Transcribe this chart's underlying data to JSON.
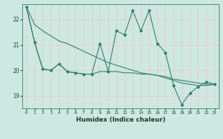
{
  "xlabel": "Humidex (Indice chaleur)",
  "bg_color": "#cce8e0",
  "line_color": "#2e7d6e",
  "grid_color": "#f0c8c8",
  "xlim": [
    -0.5,
    23.5
  ],
  "ylim": [
    18.5,
    22.6
  ],
  "yticks": [
    19,
    20,
    21,
    22
  ],
  "xticks": [
    0,
    1,
    2,
    3,
    4,
    5,
    6,
    7,
    8,
    9,
    10,
    11,
    12,
    13,
    14,
    15,
    16,
    17,
    18,
    19,
    20,
    21,
    22,
    23
  ],
  "series1": [
    22.5,
    21.8,
    21.55,
    21.35,
    21.15,
    21.05,
    20.9,
    20.75,
    20.6,
    20.45,
    20.3,
    20.2,
    20.1,
    20.0,
    19.9,
    19.85,
    19.8,
    19.7,
    19.6,
    19.5,
    19.45,
    19.4,
    19.4,
    19.45
  ],
  "series2": [
    22.5,
    21.1,
    20.05,
    20.0,
    20.25,
    19.95,
    19.9,
    19.85,
    19.85,
    21.05,
    19.95,
    21.55,
    21.4,
    22.35,
    21.55,
    22.35,
    21.05,
    20.7,
    19.4,
    18.65,
    19.1,
    19.35,
    19.55,
    19.45
  ],
  "series3": [
    22.5,
    21.1,
    20.05,
    20.0,
    20.25,
    19.95,
    19.9,
    19.85,
    19.85,
    19.95,
    19.95,
    19.95,
    19.9,
    19.9,
    19.85,
    19.85,
    19.8,
    19.75,
    19.65,
    19.6,
    19.55,
    19.5,
    19.45,
    19.45
  ]
}
